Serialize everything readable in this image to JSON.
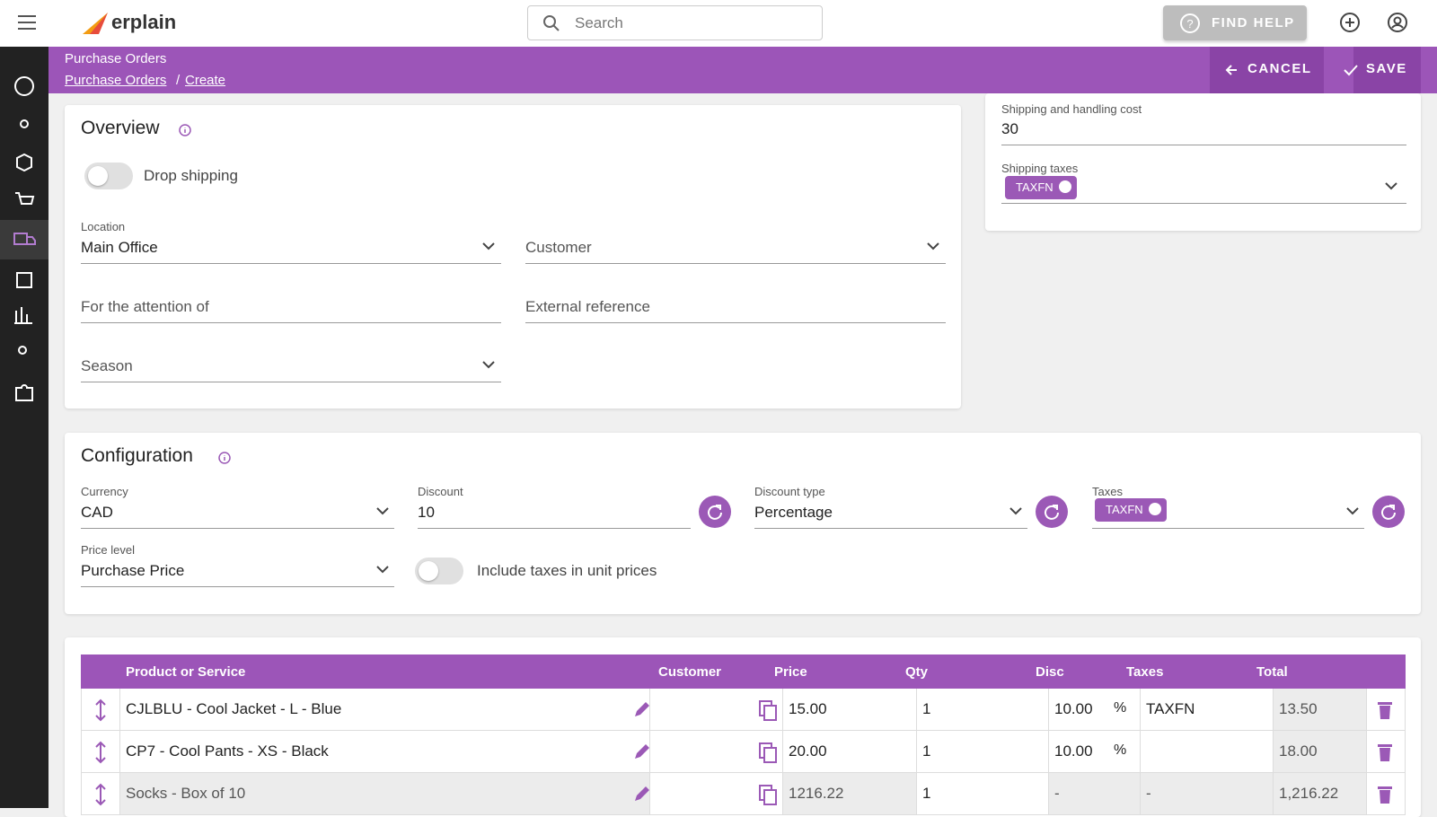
{
  "topbar": {
    "logo": "erplain",
    "search": "Search",
    "help": "FIND HELP"
  },
  "header": {
    "title": "Purchase Orders",
    "breadcrumb": [
      "Purchase Orders",
      "/",
      "Create"
    ],
    "cancel": "CANCEL",
    "save": "SAVE"
  },
  "overview": {
    "title": "Overview",
    "drop_shipping": "Drop shipping",
    "location_label": "Location",
    "location": "Main Office",
    "customer": "Customer",
    "attention": "For the attention of",
    "external_reference": "External reference",
    "season": "Season"
  },
  "shipping": {
    "cost_label": "Shipping and handling cost",
    "cost": "30",
    "taxes_label": "Shipping taxes",
    "taxes_chip": "TAXFN"
  },
  "configuration": {
    "title": "Configuration",
    "currency_label": "Currency",
    "currency": "CAD",
    "discount_label": "Discount",
    "discount": "10",
    "discount_type_label": "Discount type",
    "discount_type": "Percentage",
    "taxes_label": "Taxes",
    "taxes_chip": "TAXFN",
    "price_level_label": "Price level",
    "price_level": "Purchase Price",
    "include_taxes": "Include taxes in unit prices"
  },
  "table": {
    "headers": [
      "Product or Service",
      "Customer",
      "Price",
      "Qty",
      "Disc",
      "Taxes",
      "Total"
    ],
    "rows": [
      {
        "product": "CJLBLU - Cool Jacket - L - Blue",
        "price": "15.00",
        "qty": "1",
        "disc": "10.00",
        "disc_unit": "%",
        "taxes": "TAXFN",
        "total": "13.50"
      },
      {
        "product": "CP7 - Cool Pants - XS - Black",
        "price": "20.00",
        "qty": "1",
        "disc": "10.00",
        "disc_unit": "%",
        "total": "18.00"
      },
      {
        "product": "Socks - Box of 10",
        "price": "1216.22",
        "qty": "1",
        "disc": "-",
        "taxes": "-",
        "total": "1,216.22"
      }
    ]
  }
}
